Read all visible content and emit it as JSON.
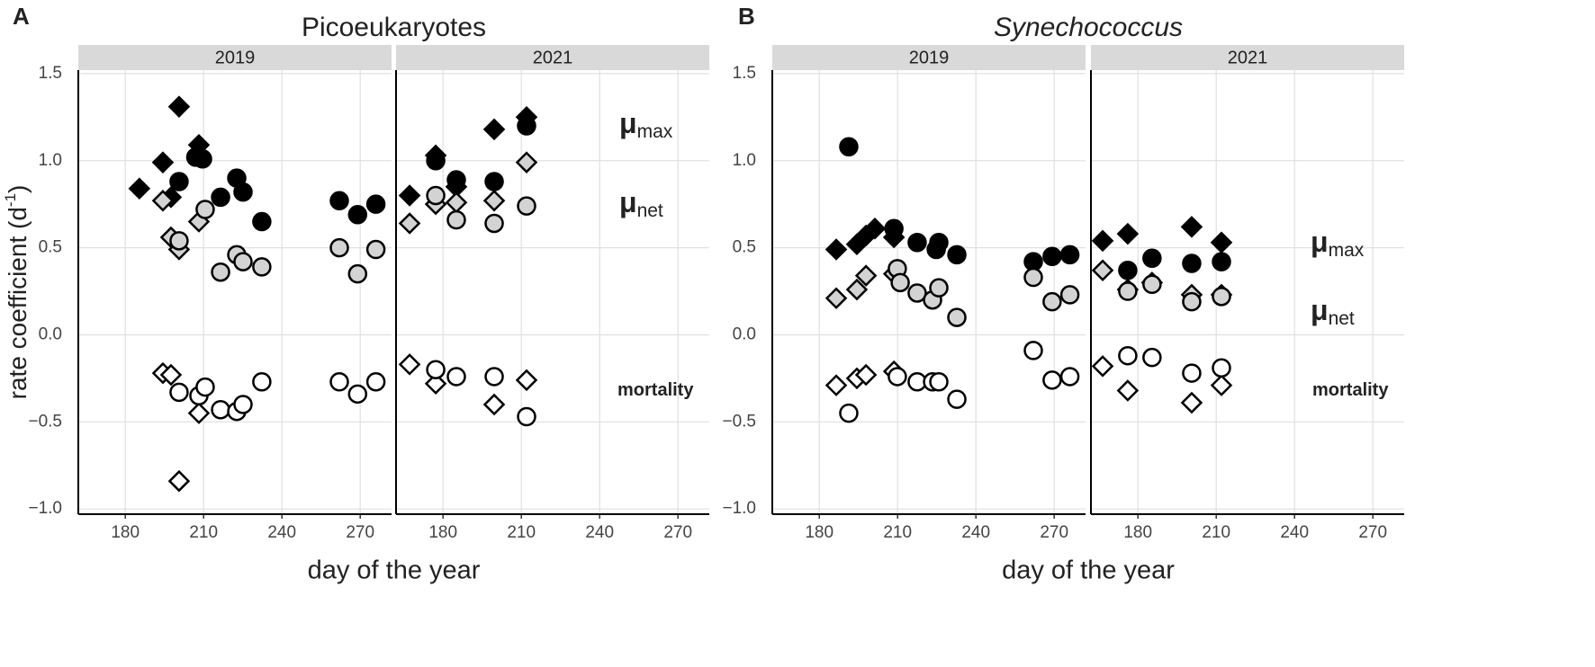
{
  "chart_data": [
    {
      "type": "scatter",
      "panel_label": "A",
      "title": "Picoeukaryotes",
      "title_style": "normal",
      "xlabel": "day of the year",
      "ylabel": [
        "rate coefficient (d",
        "-1",
        ")"
      ],
      "ylim": [
        -1.03,
        1.52
      ],
      "yticks": [
        {
          "value": -1,
          "label": "−1.0"
        },
        {
          "value": -0.5,
          "label": "−0.5"
        },
        {
          "value": 0,
          "label": "0.0"
        },
        {
          "value": 0.5,
          "label": "0.5"
        },
        {
          "value": 1,
          "label": "1.0"
        },
        {
          "value": 1.5,
          "label": "1.5"
        }
      ],
      "grid": true,
      "annotations": [
        {
          "text": "μ",
          "sub": "max"
        },
        {
          "text": "μ",
          "sub": "net"
        },
        {
          "text": "mortality"
        }
      ],
      "facets": [
        {
          "label": "2019",
          "xlim": [
            162,
            282
          ],
          "xticks": [
            180,
            210,
            240,
            270
          ],
          "series": [
            {
              "shape": "diamond",
              "color": "#000000",
              "x": [
                185.4,
                194.4,
                197.5,
                200.6,
                208.2
              ],
              "y": [
                0.84,
                0.99,
                0.79,
                1.31,
                1.09
              ]
            },
            {
              "shape": "circle",
              "color": "#000000",
              "x": [
                200.6,
                207,
                209.6,
                216.5,
                222.7,
                225.1,
                232.3,
                262,
                269,
                276
              ],
              "y": [
                0.88,
                1.02,
                1.01,
                0.79,
                0.9,
                0.82,
                0.65,
                0.77,
                0.69,
                0.75
              ]
            },
            {
              "shape": "diamond",
              "color": "#d3d3d3",
              "x": [
                194.4,
                197.5,
                200.6,
                208.2
              ],
              "y": [
                0.77,
                0.56,
                0.49,
                0.65
              ]
            },
            {
              "shape": "circle",
              "color": "#d3d3d3",
              "x": [
                200.6,
                210.6,
                216.5,
                222.7,
                225.1,
                232.3,
                262,
                269,
                276
              ],
              "y": [
                0.54,
                0.72,
                0.36,
                0.46,
                0.42,
                0.39,
                0.5,
                0.35,
                0.49
              ]
            },
            {
              "shape": "diamond",
              "color": "#ffffff",
              "x": [
                194.4,
                197.5,
                200.6,
                208.2
              ],
              "y": [
                -0.22,
                -0.23,
                -0.84,
                -0.45
              ]
            },
            {
              "shape": "circle",
              "color": "#ffffff",
              "x": [
                200.6,
                208.2,
                210.6,
                216.5,
                222.7,
                225.1,
                232.3,
                262,
                269,
                276
              ],
              "y": [
                -0.33,
                -0.35,
                -0.3,
                -0.43,
                -0.44,
                -0.4,
                -0.27,
                -0.27,
                -0.34,
                -0.27
              ]
            }
          ]
        },
        {
          "label": "2021",
          "xlim": [
            162,
            282
          ],
          "xticks": [
            180,
            210,
            240,
            270
          ],
          "series": [
            {
              "shape": "diamond",
              "color": "#000000",
              "x": [
                167.2,
                177.2,
                185.1,
                199.6,
                212
              ],
              "y": [
                0.8,
                1.03,
                0.85,
                1.18,
                1.25
              ]
            },
            {
              "shape": "circle",
              "color": "#000000",
              "x": [
                177.2,
                185.1,
                199.6,
                212
              ],
              "y": [
                1.0,
                0.89,
                0.88,
                1.2
              ]
            },
            {
              "shape": "diamond",
              "color": "#d3d3d3",
              "x": [
                167.2,
                177.2,
                185.1,
                199.6,
                212
              ],
              "y": [
                0.64,
                0.75,
                0.76,
                0.77,
                0.99
              ]
            },
            {
              "shape": "circle",
              "color": "#d3d3d3",
              "x": [
                177.2,
                185.1,
                199.6,
                212
              ],
              "y": [
                0.8,
                0.66,
                0.64,
                0.74
              ]
            },
            {
              "shape": "diamond",
              "color": "#ffffff",
              "x": [
                167.2,
                177.2,
                199.6,
                212
              ],
              "y": [
                -0.17,
                -0.28,
                -0.4,
                -0.26
              ]
            },
            {
              "shape": "circle",
              "color": "#ffffff",
              "x": [
                177.2,
                185.1,
                199.6,
                212
              ],
              "y": [
                -0.2,
                -0.24,
                -0.24,
                -0.47
              ]
            }
          ]
        }
      ]
    },
    {
      "type": "scatter",
      "panel_label": "B",
      "title": "Synechococcus",
      "title_style": "italic",
      "xlabel": "day of the year",
      "ylim": [
        -1.03,
        1.52
      ],
      "yticks": [
        {
          "value": -1,
          "label": "−1.0"
        },
        {
          "value": -0.5,
          "label": "−0.5"
        },
        {
          "value": 0,
          "label": "0.0"
        },
        {
          "value": 0.5,
          "label": "0.5"
        },
        {
          "value": 1,
          "label": "1.0"
        },
        {
          "value": 1.5,
          "label": "1.5"
        }
      ],
      "grid": true,
      "annotations": [
        {
          "text": "μ",
          "sub": "max"
        },
        {
          "text": "μ",
          "sub": "net"
        },
        {
          "text": "mortality"
        }
      ],
      "facets": [
        {
          "label": "2019",
          "xlim": [
            162,
            282
          ],
          "xticks": [
            180,
            210,
            240,
            270
          ],
          "series": [
            {
              "shape": "diamond",
              "color": "#000000",
              "x": [
                186.5,
                194.4,
                197.9,
                201.3,
                208.6
              ],
              "y": [
                0.49,
                0.52,
                0.57,
                0.61,
                0.56
              ]
            },
            {
              "shape": "circle",
              "color": "#000000",
              "x": [
                191.3,
                208.6,
                217.5,
                224.8,
                225.8,
                232.7,
                262,
                269.2,
                276
              ],
              "y": [
                1.08,
                0.61,
                0.53,
                0.49,
                0.53,
                0.46,
                0.42,
                0.45,
                0.46
              ]
            },
            {
              "shape": "diamond",
              "color": "#d3d3d3",
              "x": [
                186.5,
                194.4,
                197.9,
                208.6
              ],
              "y": [
                0.21,
                0.26,
                0.34,
                0.35
              ]
            },
            {
              "shape": "circle",
              "color": "#d3d3d3",
              "x": [
                209.9,
                211,
                217.5,
                223.4,
                225.8,
                232.7,
                262,
                269.2,
                276
              ],
              "y": [
                0.38,
                0.3,
                0.24,
                0.2,
                0.27,
                0.1,
                0.33,
                0.19,
                0.23
              ]
            },
            {
              "shape": "diamond",
              "color": "#ffffff",
              "x": [
                186.5,
                194.4,
                197.9,
                208.6
              ],
              "y": [
                -0.29,
                -0.25,
                -0.23,
                -0.21
              ]
            },
            {
              "shape": "circle",
              "color": "#ffffff",
              "x": [
                191.3,
                209.9,
                217.5,
                223.4,
                225.8,
                232.7,
                262,
                269.2,
                276
              ],
              "y": [
                -0.45,
                -0.24,
                -0.27,
                -0.27,
                -0.27,
                -0.37,
                -0.09,
                -0.26,
                -0.24
              ]
            }
          ]
        },
        {
          "label": "2021",
          "xlim": [
            162,
            282
          ],
          "xticks": [
            180,
            210,
            240,
            270
          ],
          "series": [
            {
              "shape": "diamond",
              "color": "#000000",
              "x": [
                166.5,
                176.1,
                200.6,
                212
              ],
              "y": [
                0.54,
                0.58,
                0.62,
                0.53
              ]
            },
            {
              "shape": "circle",
              "color": "#000000",
              "x": [
                176.1,
                185.4,
                200.6,
                212
              ],
              "y": [
                0.37,
                0.44,
                0.41,
                0.42
              ]
            },
            {
              "shape": "diamond",
              "color": "#d3d3d3",
              "x": [
                166.5,
                176.1,
                185.4,
                200.6,
                212
              ],
              "y": [
                0.37,
                0.26,
                0.3,
                0.23,
                0.23
              ]
            },
            {
              "shape": "circle",
              "color": "#d3d3d3",
              "x": [
                176.1,
                185.4,
                200.6,
                212
              ],
              "y": [
                0.25,
                0.29,
                0.19,
                0.22
              ]
            },
            {
              "shape": "diamond",
              "color": "#ffffff",
              "x": [
                166.5,
                176.1,
                200.6,
                212
              ],
              "y": [
                -0.18,
                -0.32,
                -0.39,
                -0.29
              ]
            },
            {
              "shape": "circle",
              "color": "#ffffff",
              "x": [
                176.1,
                185.4,
                200.6,
                212
              ],
              "y": [
                -0.12,
                -0.13,
                -0.22,
                -0.19
              ]
            }
          ]
        }
      ]
    }
  ]
}
